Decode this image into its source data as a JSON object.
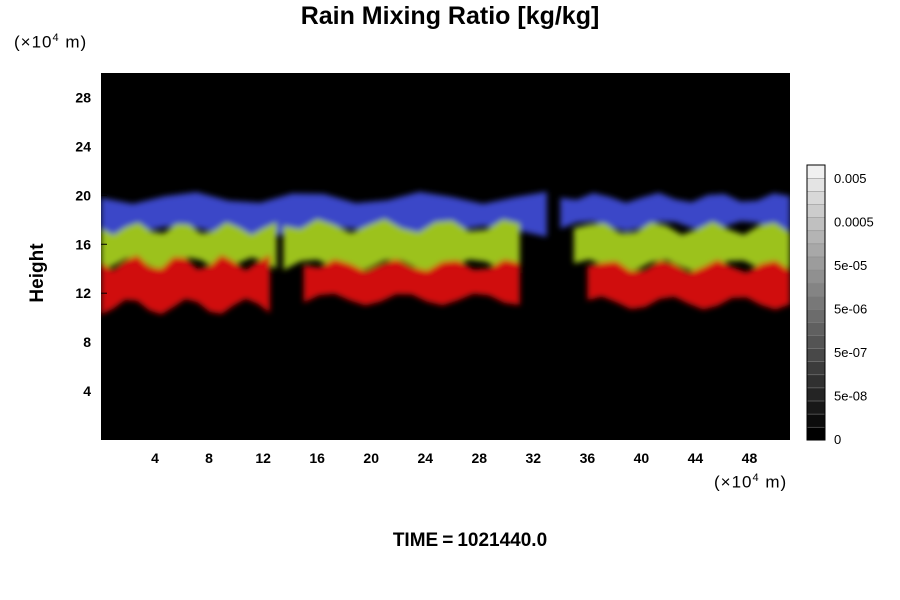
{
  "chart_data": {
    "type": "heatmap",
    "title": "Rain Mixing Ratio [kg/kg]",
    "ylabel": "Height",
    "x_unit": "(×10⁴ m)",
    "y_unit": "(×10⁴ m)",
    "unit_prefix": "(×10",
    "unit_exp": "4",
    "unit_suffix": " m)",
    "xlim": [
      0,
      51
    ],
    "ylim": [
      0,
      30
    ],
    "x_ticks": [
      4,
      8,
      12,
      16,
      20,
      24,
      28,
      32,
      36,
      40,
      44,
      48
    ],
    "y_ticks": [
      4,
      8,
      12,
      16,
      20,
      24,
      28
    ],
    "background": "#000000",
    "colorbar": {
      "levels": [
        "0",
        "5e-08",
        "5e-07",
        "5e-06",
        "5e-05",
        "0.0005",
        "0.005"
      ],
      "scale": "log"
    },
    "bands": [
      {
        "name": "blue",
        "color": "#3a46c8",
        "segments": [
          {
            "x0": 0,
            "x1": 33,
            "y_top": 19.8,
            "y_bot": 17.0
          },
          {
            "x0": 34,
            "x1": 51,
            "y_top": 19.8,
            "y_bot": 17.5
          }
        ]
      },
      {
        "name": "yellow-green",
        "color": "#9cc21a",
        "segments": [
          {
            "x0": 0,
            "x1": 13,
            "y_top": 17.3,
            "y_bot": 14.4
          },
          {
            "x0": 13.5,
            "x1": 31,
            "y_top": 17.5,
            "y_bot": 14.2
          },
          {
            "x0": 35,
            "x1": 51,
            "y_top": 17.3,
            "y_bot": 14.2
          }
        ]
      },
      {
        "name": "red",
        "color": "#d0100e",
        "segments": [
          {
            "x0": 0,
            "x1": 12.5,
            "y_top": 14.5,
            "y_bot": 10.9
          },
          {
            "x0": 15,
            "x1": 31,
            "y_top": 14.3,
            "y_bot": 11.5
          },
          {
            "x0": 36,
            "x1": 51,
            "y_top": 14.2,
            "y_bot": 11.2
          }
        ]
      }
    ]
  },
  "footer": {
    "time_label": "TIME",
    "time_eq": "=",
    "time_value": "1021440.0"
  }
}
